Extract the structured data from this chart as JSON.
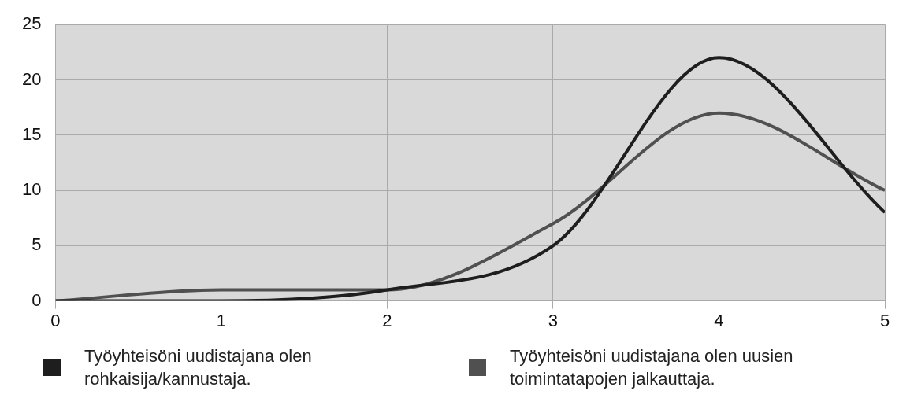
{
  "chart_data": {
    "type": "line",
    "x": [
      0,
      1,
      2,
      3,
      4,
      5
    ],
    "series": [
      {
        "name": "Työyhteisöni uudistajana olen rohkaisija/kannustaja.",
        "color": "#1e1e1e",
        "values": [
          0,
          0,
          1,
          5,
          22,
          8
        ]
      },
      {
        "name": "Työyhteisöni uudistajana olen uusien toimintatapojen jalkauttaja.",
        "color": "#505050",
        "values": [
          0,
          1,
          1,
          7,
          17,
          10
        ]
      }
    ],
    "xlim": [
      0,
      5
    ],
    "xticks": [
      0,
      1,
      2,
      3,
      4,
      5
    ],
    "ylim": [
      0,
      25
    ],
    "yticks": [
      0,
      5,
      10,
      15,
      20,
      25
    ],
    "grid": true,
    "legend": "bottom",
    "marker": "none",
    "line_style": "solid"
  }
}
